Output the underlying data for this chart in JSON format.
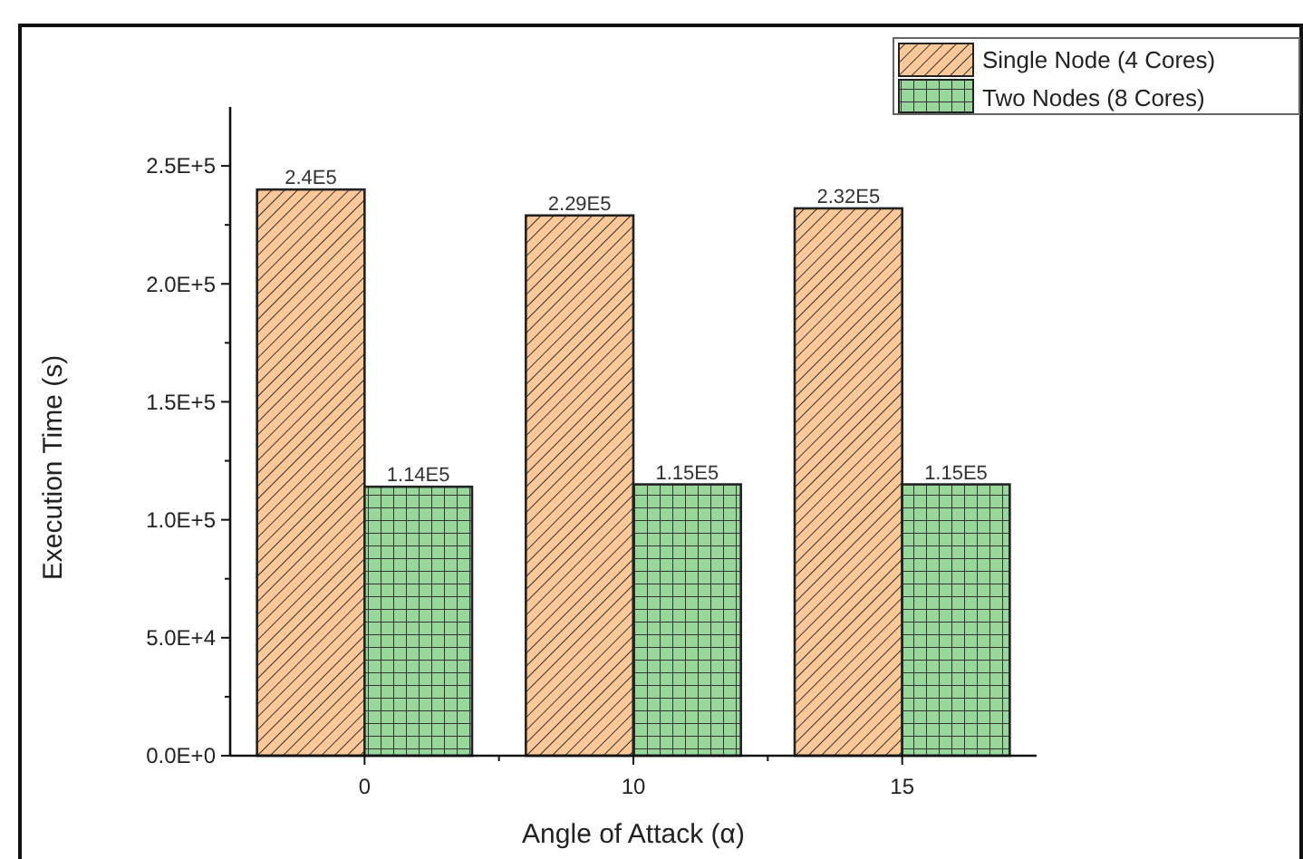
{
  "chart_data": {
    "type": "bar",
    "xlabel": "Angle of Attack (α)",
    "ylabel": "Execution Time (s)",
    "categories": [
      "0",
      "10",
      "15"
    ],
    "series": [
      {
        "name": "Single Node (4 Cores)",
        "color": "#fdc898",
        "values": [
          240000,
          229000,
          232000
        ],
        "value_labels": [
          "2.4E5",
          "2.29E5",
          "2.32E5"
        ]
      },
      {
        "name": "Two Nodes (8 Cores)",
        "color": "#98d79a",
        "values": [
          114000,
          115000,
          115000
        ],
        "value_labels": [
          "1.14E5",
          "1.15E5",
          "1.15E5"
        ]
      }
    ],
    "ylim": [
      0,
      275000
    ],
    "yticks": [
      {
        "value": 0,
        "label": "0.0E+0"
      },
      {
        "value": 25000,
        "label": null
      },
      {
        "value": 50000,
        "label": "5.0E+4"
      },
      {
        "value": 75000,
        "label": null
      },
      {
        "value": 100000,
        "label": "1.0E+5"
      },
      {
        "value": 125000,
        "label": null
      },
      {
        "value": 150000,
        "label": "1.5E+5"
      },
      {
        "value": 175000,
        "label": null
      },
      {
        "value": 200000,
        "label": "2.0E+5"
      },
      {
        "value": 225000,
        "label": null
      },
      {
        "value": 250000,
        "label": "2.5E+5"
      }
    ],
    "legend": "top right"
  }
}
